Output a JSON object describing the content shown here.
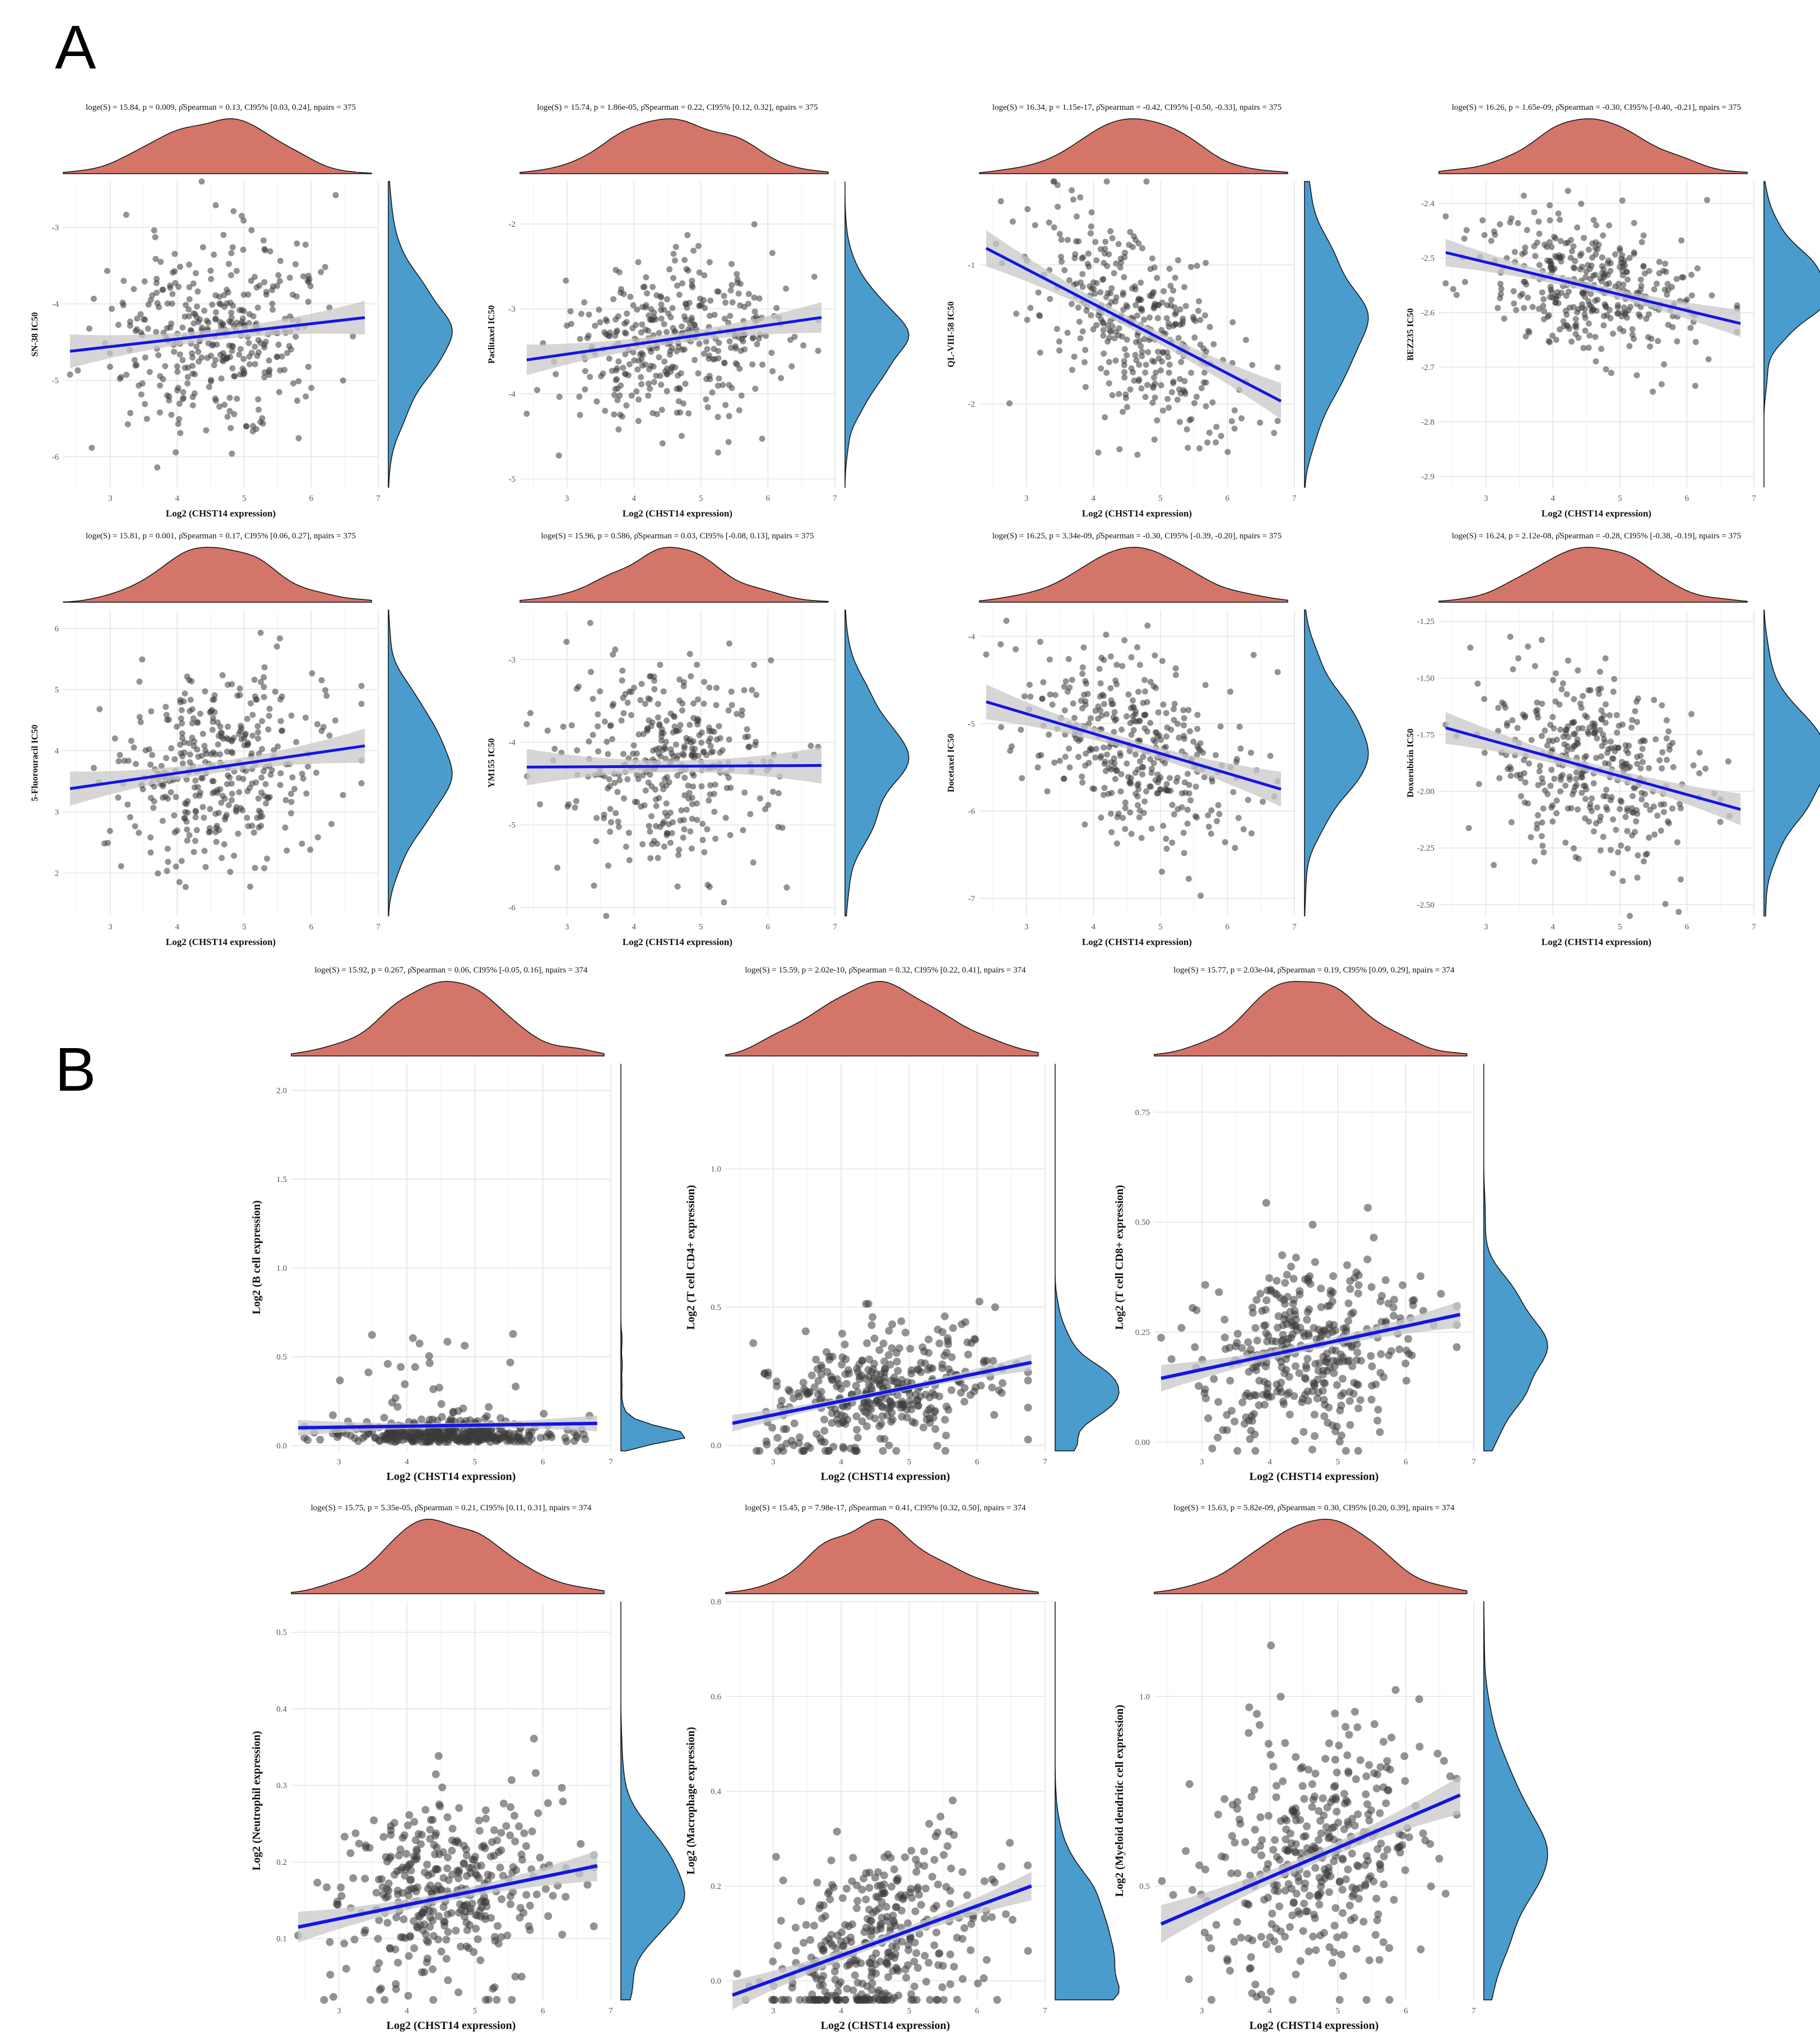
{
  "figure": {
    "panel_labels": [
      "A",
      "B"
    ],
    "xlabel": "Log2 (CHST14 expression)",
    "colors": {
      "points": "#3a3a3a",
      "regression_line": "#1414e6",
      "confidence_band": "#c8c8c8",
      "top_density": "#d4756a",
      "right_density": "#4a9ccd",
      "grid": "#e4e4e4"
    }
  },
  "chart_data": [
    {
      "type": "scatter",
      "panel": "A",
      "ylabel": "SN-38 IC50",
      "subtitle": "loge(S) = 15.84, p = 0.009, ρ̂Spearman = 0.13, CI95% [0.03, 0.24], npairs = 375",
      "xlim": [
        2.3,
        7
      ],
      "xticks": [
        3,
        4,
        5,
        6,
        7
      ],
      "ylim": [
        -6.4,
        -2.4
      ],
      "yticks": [
        -3,
        -4,
        -5,
        -6
      ],
      "ytick_labels": [
        "-3",
        "-4",
        "-5",
        "-6"
      ],
      "fit": {
        "x": [
          2.4,
          6.8
        ],
        "y": [
          -4.62,
          -4.18
        ],
        "ci": [
          0.22,
          0.07,
          0.22
        ]
      },
      "center": [
        4.6,
        -4.4
      ],
      "spread": [
        0.8,
        0.62
      ],
      "n_points": 375,
      "cluster": false
    },
    {
      "type": "scatter",
      "panel": "A",
      "ylabel": "Paclitaxel IC50",
      "subtitle": "loge(S) = 15.74, p = 1.86e-05, ρ̂Spearman = 0.22, CI95% [0.12, 0.32], npairs = 375",
      "xlim": [
        2.3,
        7
      ],
      "xticks": [
        3,
        4,
        5,
        6,
        7
      ],
      "ylim": [
        -5.1,
        -1.5
      ],
      "yticks": [
        -2,
        -3,
        -4,
        -5
      ],
      "ytick_labels": [
        "-2",
        "-3",
        "-4",
        "-5"
      ],
      "fit": {
        "x": [
          2.4,
          6.8
        ],
        "y": [
          -3.6,
          -3.1
        ],
        "ci": [
          0.18,
          0.06,
          0.18
        ]
      },
      "center": [
        4.6,
        -3.3
      ],
      "spread": [
        0.8,
        0.48
      ],
      "n_points": 375,
      "cluster": false
    },
    {
      "type": "scatter",
      "panel": "A",
      "ylabel": "QL-VIII-58 IC50",
      "subtitle": "loge(S) = 16.34, p = 1.15e-17, ρ̂Spearman = -0.42, CI95% [-0.50, -0.33], npairs = 375",
      "xlim": [
        2.3,
        7
      ],
      "xticks": [
        3,
        4,
        5,
        6,
        7
      ],
      "ylim": [
        -2.6,
        -0.4
      ],
      "yticks": [
        -1,
        -2
      ],
      "ytick_labels": [
        "-1",
        "-2"
      ],
      "fit": {
        "x": [
          2.4,
          6.8
        ],
        "y": [
          -0.88,
          -1.98
        ],
        "ci": [
          0.13,
          0.04,
          0.13
        ]
      },
      "center": [
        4.6,
        -1.45
      ],
      "spread": [
        0.8,
        0.33
      ],
      "n_points": 375,
      "cluster": false
    },
    {
      "type": "scatter",
      "panel": "A",
      "ylabel": "BEZ235 IC50",
      "subtitle": "loge(S) = 16.26, p = 1.65e-09, ρ̂Spearman = -0.30, CI95% [-0.40, -0.21], npairs = 375",
      "xlim": [
        2.3,
        7
      ],
      "xticks": [
        3,
        4,
        5,
        6,
        7
      ],
      "ylim": [
        -2.92,
        -2.36
      ],
      "yticks": [
        -2.4,
        -2.5,
        -2.6,
        -2.7,
        -2.8,
        -2.9
      ],
      "ytick_labels": [
        "-2.4",
        "-2.5",
        "-2.6",
        "-2.7",
        "-2.8",
        "-2.9"
      ],
      "fit": {
        "x": [
          2.4,
          6.8
        ],
        "y": [
          -2.49,
          -2.62
        ],
        "ci": [
          0.025,
          0.008,
          0.025
        ]
      },
      "center": [
        4.6,
        -2.56
      ],
      "spread": [
        0.8,
        0.06
      ],
      "n_points": 375,
      "cluster": false
    },
    {
      "type": "scatter",
      "panel": "A",
      "ylabel": "5-Fluorouracil IC50",
      "subtitle": "loge(S) = 15.81, p = 0.001, ρ̂Spearman = 0.17, CI95% [0.06, 0.27], npairs = 375",
      "xlim": [
        2.3,
        7
      ],
      "xticks": [
        3,
        4,
        5,
        6,
        7
      ],
      "ylim": [
        1.3,
        6.3
      ],
      "yticks": [
        2,
        3,
        4,
        5,
        6
      ],
      "ytick_labels": [
        "2",
        "3",
        "4",
        "5",
        "6"
      ],
      "fit": {
        "x": [
          2.4,
          6.8
        ],
        "y": [
          3.38,
          4.08
        ],
        "ci": [
          0.28,
          0.09,
          0.28
        ]
      },
      "center": [
        4.6,
        3.75
      ],
      "spread": [
        0.8,
        0.75
      ],
      "n_points": 375,
      "cluster": false
    },
    {
      "type": "scatter",
      "panel": "A",
      "ylabel": "YM155 IC50",
      "subtitle": "loge(S) = 15.96, p = 0.586, ρ̂Spearman = 0.03, CI95% [-0.08, 0.13], npairs = 375",
      "xlim": [
        2.3,
        7
      ],
      "xticks": [
        3,
        4,
        5,
        6,
        7
      ],
      "ylim": [
        -6.1,
        -2.4
      ],
      "yticks": [
        -3,
        -4,
        -5,
        -6
      ],
      "ytick_labels": [
        "-3",
        "-4",
        "-5",
        "-6"
      ],
      "fit": {
        "x": [
          2.4,
          6.8
        ],
        "y": [
          -4.3,
          -4.28
        ],
        "ci": [
          0.22,
          0.07,
          0.22
        ]
      },
      "center": [
        4.6,
        -4.3
      ],
      "spread": [
        0.8,
        0.6
      ],
      "n_points": 375,
      "cluster": false
    },
    {
      "type": "scatter",
      "panel": "A",
      "ylabel": "Docetaxel IC50",
      "subtitle": "loge(S) = 16.25, p = 3.34e-09, ρ̂Spearman = -0.30, CI95% [-0.39, -0.20], npairs = 375",
      "xlim": [
        2.3,
        7
      ],
      "xticks": [
        3,
        4,
        5,
        6,
        7
      ],
      "ylim": [
        -7.2,
        -3.7
      ],
      "yticks": [
        -4,
        -5,
        -6,
        -7
      ],
      "ytick_labels": [
        "-4",
        "-5",
        "-6",
        "-7"
      ],
      "fit": {
        "x": [
          2.4,
          6.8
        ],
        "y": [
          -4.75,
          -5.75
        ],
        "ci": [
          0.2,
          0.06,
          0.2
        ]
      },
      "center": [
        4.6,
        -5.25
      ],
      "spread": [
        0.8,
        0.52
      ],
      "n_points": 375,
      "cluster": false
    },
    {
      "type": "scatter",
      "panel": "A",
      "ylabel": "Doxorubicin IC50",
      "subtitle": "loge(S) = 16.24, p = 2.12e-08, ρ̂Spearman = -0.28, CI95% [-0.38, -0.19], npairs = 375",
      "xlim": [
        2.3,
        7
      ],
      "xticks": [
        3,
        4,
        5,
        6,
        7
      ],
      "ylim": [
        -2.55,
        -1.2
      ],
      "yticks": [
        -1.25,
        -1.5,
        -1.75,
        -2.0,
        -2.25,
        -2.5
      ],
      "ytick_labels": [
        "-1.25",
        "-1.50",
        "-1.75",
        "-2.00",
        "-2.25",
        "-2.50"
      ],
      "fit": {
        "x": [
          2.4,
          6.8
        ],
        "y": [
          -1.72,
          -2.08
        ],
        "ci": [
          0.07,
          0.022,
          0.07
        ]
      },
      "center": [
        4.6,
        -1.9
      ],
      "spread": [
        0.8,
        0.2
      ],
      "n_points": 375,
      "cluster": false
    },
    {
      "type": "scatter",
      "panel": "B",
      "ylabel": "Log2 (B cell expression)",
      "subtitle": "loge(S) = 15.92, p = 0.267, ρ̂Spearman = 0.06, CI95% [-0.05, 0.16], npairs = 374",
      "xlim": [
        2.3,
        7
      ],
      "xticks": [
        3,
        4,
        5,
        6,
        7
      ],
      "ylim": [
        -0.03,
        2.15
      ],
      "yticks": [
        0,
        0.5,
        1.0,
        1.5,
        2.0
      ],
      "ytick_labels": [
        "0.0",
        "0.5",
        "1.0",
        "1.5",
        "2.0"
      ],
      "fit": {
        "x": [
          2.4,
          6.8
        ],
        "y": [
          0.1,
          0.125
        ],
        "ci": [
          0.045,
          0.014,
          0.045
        ]
      },
      "center": [
        4.6,
        0.1
      ],
      "spread": [
        0.8,
        0.1
      ],
      "n_points": 374,
      "cluster": true
    },
    {
      "type": "scatter",
      "panel": "B",
      "ylabel": "Log2 (T cell CD4+ expression)",
      "subtitle": "loge(S) = 15.59, p = 2.02e-10, ρ̂Spearman = 0.32, CI95% [0.22, 0.41], npairs = 374",
      "xlim": [
        2.3,
        7
      ],
      "xticks": [
        3,
        4,
        5,
        6,
        7
      ],
      "ylim": [
        -0.02,
        1.38
      ],
      "yticks": [
        0,
        0.5,
        1.0
      ],
      "ytick_labels": [
        "0.0",
        "0.5",
        "1.0"
      ],
      "fit": {
        "x": [
          2.4,
          6.8
        ],
        "y": [
          0.08,
          0.3
        ],
        "ci": [
          0.03,
          0.009,
          0.03
        ]
      },
      "center": [
        4.6,
        0.18
      ],
      "spread": [
        0.8,
        0.11
      ],
      "n_points": 374,
      "cluster": false
    },
    {
      "type": "scatter",
      "panel": "B",
      "ylabel": "Log2 (T cell CD8+ expression)",
      "subtitle": "loge(S) = 15.77, p = 2.03e-04, ρ̂Spearman = 0.19, CI95% [0.09, 0.29], npairs = 374",
      "xlim": [
        2.3,
        7
      ],
      "xticks": [
        3,
        4,
        5,
        6,
        7
      ],
      "ylim": [
        -0.02,
        0.86
      ],
      "yticks": [
        0,
        0.25,
        0.5,
        0.75
      ],
      "ytick_labels": [
        "0.00",
        "0.25",
        "0.50",
        "0.75"
      ],
      "fit": {
        "x": [
          2.4,
          6.8
        ],
        "y": [
          0.145,
          0.29
        ],
        "ci": [
          0.03,
          0.009,
          0.03
        ]
      },
      "center": [
        4.6,
        0.21
      ],
      "spread": [
        0.8,
        0.1
      ],
      "n_points": 374,
      "cluster": false
    },
    {
      "type": "scatter",
      "panel": "B",
      "ylabel": "Log2 (Neutrophil expression)",
      "subtitle": "loge(S) = 15.75, p = 5.35e-05, ρ̂Spearman = 0.21, CI95% [0.11, 0.31], npairs = 374",
      "xlim": [
        2.3,
        7
      ],
      "xticks": [
        3,
        4,
        5,
        6,
        7
      ],
      "ylim": [
        0.02,
        0.54
      ],
      "yticks": [
        0.1,
        0.2,
        0.3,
        0.4,
        0.5
      ],
      "ytick_labels": [
        "0.1",
        "0.2",
        "0.3",
        "0.4",
        "0.5"
      ],
      "fit": {
        "x": [
          2.4,
          6.8
        ],
        "y": [
          0.115,
          0.195
        ],
        "ci": [
          0.02,
          0.006,
          0.02
        ]
      },
      "center": [
        4.6,
        0.155
      ],
      "spread": [
        0.8,
        0.06
      ],
      "n_points": 374,
      "cluster": false
    },
    {
      "type": "scatter",
      "panel": "B",
      "ylabel": "Log2 (Macrophage expression)",
      "subtitle": "loge(S) = 15.45, p = 7.98e-17, ρ̂Spearman = 0.41, CI95% [0.32, 0.50], npairs = 374",
      "xlim": [
        2.3,
        7
      ],
      "xticks": [
        3,
        4,
        5,
        6,
        7
      ],
      "ylim": [
        -0.04,
        0.8
      ],
      "yticks": [
        0,
        0.2,
        0.4,
        0.6,
        0.8
      ],
      "ytick_labels": [
        "0.0",
        "0.2",
        "0.4",
        "0.6",
        "0.8"
      ],
      "fit": {
        "x": [
          2.4,
          6.8
        ],
        "y": [
          -0.03,
          0.2
        ],
        "ci": [
          0.03,
          0.009,
          0.03
        ]
      },
      "center": [
        4.6,
        0.08
      ],
      "spread": [
        0.8,
        0.1
      ],
      "n_points": 374,
      "cluster": false
    },
    {
      "type": "scatter",
      "panel": "B",
      "ylabel": "Log2 (Myeloid dendritic cell expression)",
      "subtitle": "loge(S) = 15.63, p = 5.82e-09, ρ̂Spearman = 0.30, CI95% [0.20, 0.39], npairs = 374",
      "xlim": [
        2.3,
        7
      ],
      "xticks": [
        3,
        4,
        5,
        6,
        7
      ],
      "ylim": [
        0.2,
        1.25
      ],
      "yticks": [
        0.5,
        1.0
      ],
      "ytick_labels": [
        "0.5",
        "1.0"
      ],
      "fit": {
        "x": [
          2.4,
          6.8
        ],
        "y": [
          0.4,
          0.74
        ],
        "ci": [
          0.05,
          0.015,
          0.05
        ]
      },
      "center": [
        4.6,
        0.57
      ],
      "spread": [
        0.8,
        0.17
      ],
      "n_points": 374,
      "cluster": false
    }
  ]
}
